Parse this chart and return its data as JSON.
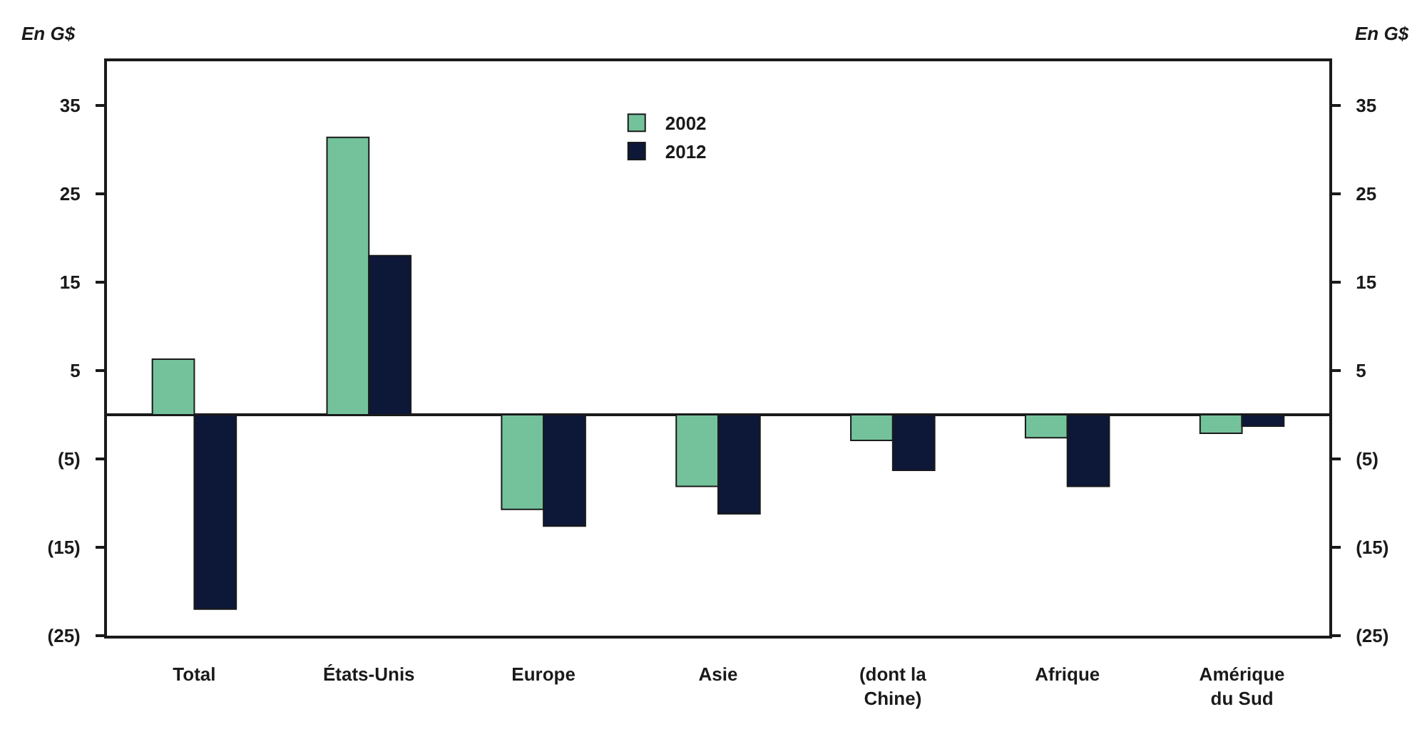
{
  "chart_data": {
    "type": "bar",
    "categories": [
      "Total",
      "États-Unis",
      "Europe",
      "Asie",
      "(dont la\nChine)",
      "Afrique",
      "Amérique\ndu Sud"
    ],
    "series": [
      {
        "name": "2002",
        "color": "#74c29c",
        "values": [
          6.3,
          31.4,
          -10.7,
          -8.1,
          -2.9,
          -2.6,
          -2.1
        ]
      },
      {
        "name": "2012",
        "color": "#0d1838",
        "values": [
          -22.0,
          18.0,
          -12.6,
          -11.2,
          -6.3,
          -8.1,
          -1.3
        ]
      }
    ],
    "ylabel": "En G$",
    "y2label": "En G$",
    "ylim": [
      -25,
      40
    ],
    "yticks": [
      35,
      25,
      15,
      5,
      {
        "value": -5,
        "label": "(5)"
      },
      {
        "value": -15,
        "label": "(15)"
      },
      {
        "value": -25,
        "label": "(25)"
      }
    ],
    "y2lim": [
      -25,
      40
    ],
    "y2ticks": [
      35,
      25,
      15,
      5,
      {
        "value": -5,
        "label": "(5)"
      },
      {
        "value": -15,
        "label": "(15)"
      },
      {
        "value": -25,
        "label": "(25)"
      }
    ],
    "legend": "top"
  }
}
